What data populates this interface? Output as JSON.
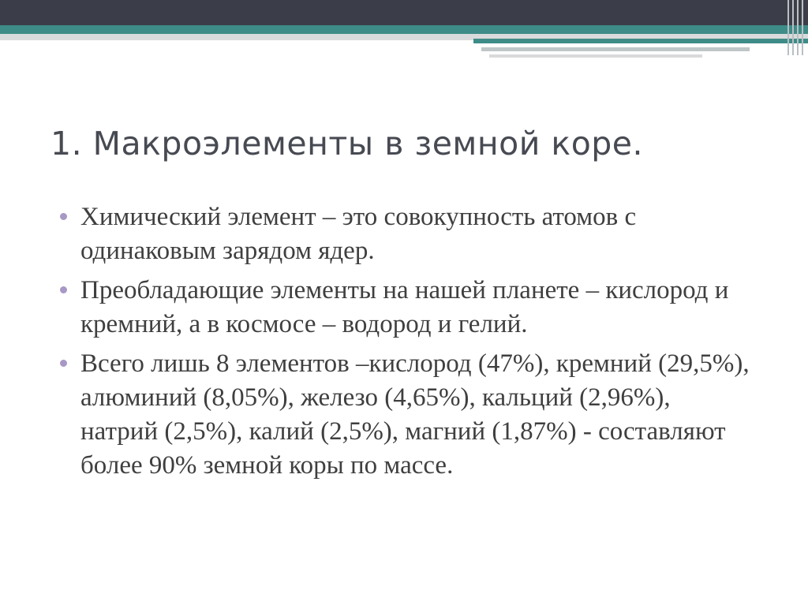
{
  "slide": {
    "title": "1. Макроэлементы в земной коре.",
    "bullets": [
      "Химический элемент – это совокупность атомов с одинаковым зарядом ядер.",
      "Преобладающие элементы на нашей планете – кислород и кремний, а в космосе – водород и гелий.",
      "Всего лишь 8 элементов –кислород (47%), кремний (29,5%), алюминий (8,05%), железо (4,65%), кальций (2,96%), натрий (2,5%), калий (2,5%), магний (1,87%) - составляют более 90% земной коры по массе."
    ]
  },
  "colors": {
    "banner_dark": "#3b3e48",
    "banner_teal": "#3e8c88",
    "title_text": "#474a52",
    "body_text": "#3f3f3f",
    "bullet_marker": "#a898c5"
  }
}
